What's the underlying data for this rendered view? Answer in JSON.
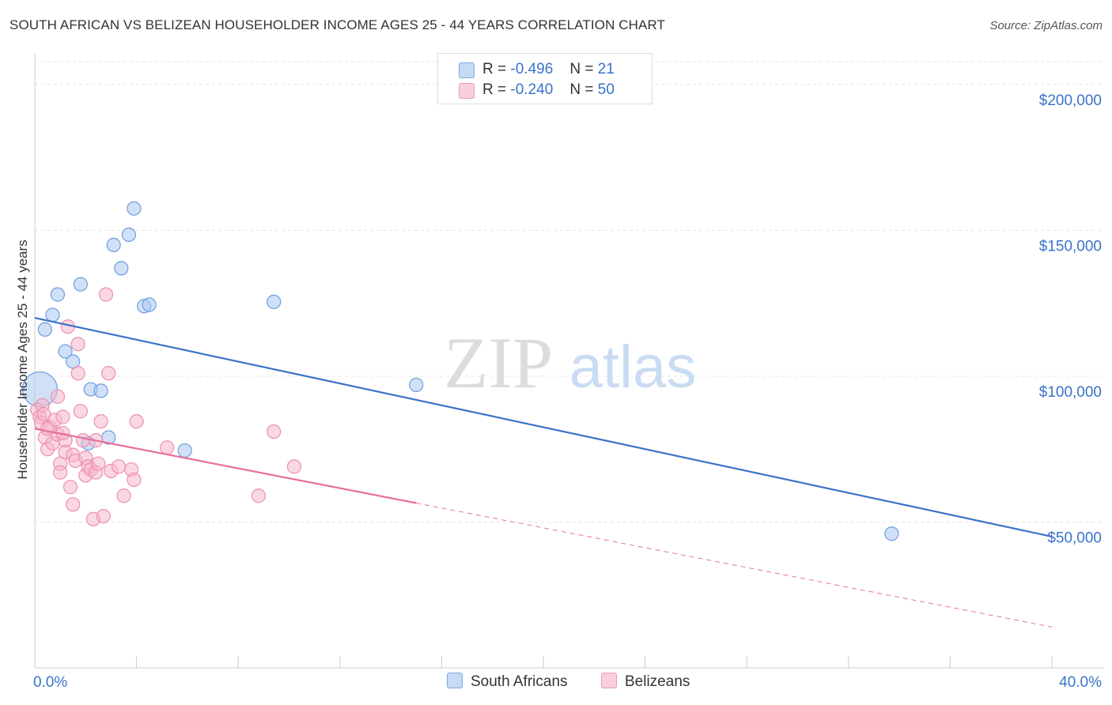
{
  "title": "SOUTH AFRICAN VS BELIZEAN HOUSEHOLDER INCOME AGES 25 - 44 YEARS CORRELATION CHART",
  "source": "Source: ZipAtlas.com",
  "watermark": {
    "zip": "ZIP",
    "atlas": "atlas"
  },
  "legend": {
    "rows": [
      {
        "r_label": "R =",
        "r_value": "-0.496",
        "n_label": "N =",
        "n_value": "21",
        "color": "#aac8f0"
      },
      {
        "r_label": "R =",
        "r_value": "-0.240",
        "n_label": "N =",
        "n_value": "50",
        "color": "#f6b8cc"
      }
    ]
  },
  "bottom_legend": {
    "series1": "South Africans",
    "series2": "Belizeans"
  },
  "colors": {
    "blue": "#3a73c9",
    "blue_fill": "#aac8f0",
    "pink": "#e8709a",
    "pink_fill": "#f6b8cc",
    "grid": "#e4e4e4",
    "axis_text": "#3a73c9"
  },
  "chart_data": {
    "type": "scatter",
    "title": "SOUTH AFRICAN VS BELIZEAN HOUSEHOLDER INCOME AGES 25 - 44 YEARS CORRELATION CHART",
    "xlabel": "",
    "ylabel": "Householder Income Ages 25 - 44 years",
    "xlim": [
      0,
      40
    ],
    "ylim": [
      0,
      210000
    ],
    "x_tick_labels": [
      "0.0%",
      "40.0%"
    ],
    "y_ticks": [
      50000,
      100000,
      150000,
      200000
    ],
    "y_tick_labels": [
      "$50,000",
      "$100,000",
      "$150,000",
      "$200,000"
    ],
    "series": [
      {
        "name": "South Africans",
        "color": "#3a73c9",
        "points": [
          [
            0.2,
            95500
          ],
          [
            0.4,
            116000
          ],
          [
            0.7,
            121000
          ],
          [
            0.9,
            128000
          ],
          [
            1.2,
            108500
          ],
          [
            1.5,
            105000
          ],
          [
            1.8,
            131500
          ],
          [
            2.1,
            77000
          ],
          [
            2.2,
            95500
          ],
          [
            2.6,
            95000
          ],
          [
            2.9,
            79000
          ],
          [
            3.1,
            145000
          ],
          [
            3.4,
            137000
          ],
          [
            3.7,
            148500
          ],
          [
            3.9,
            157500
          ],
          [
            4.3,
            124000
          ],
          [
            4.5,
            124500
          ],
          [
            5.9,
            74500
          ],
          [
            9.4,
            125500
          ],
          [
            15.0,
            97000
          ],
          [
            33.7,
            46000
          ]
        ],
        "trend": {
          "x": [
            0,
            40
          ],
          "y": [
            120000,
            45000
          ]
        }
      },
      {
        "name": "Belizeans",
        "color": "#e8709a",
        "points": [
          [
            0.1,
            88500
          ],
          [
            0.2,
            86000
          ],
          [
            0.25,
            84000
          ],
          [
            0.3,
            90000
          ],
          [
            0.35,
            87000
          ],
          [
            0.4,
            79000
          ],
          [
            0.5,
            75000
          ],
          [
            0.6,
            82500
          ],
          [
            0.7,
            77000
          ],
          [
            0.8,
            85000
          ],
          [
            0.9,
            93000
          ],
          [
            0.9,
            80000
          ],
          [
            1.0,
            70000
          ],
          [
            1.0,
            67000
          ],
          [
            1.1,
            86000
          ],
          [
            1.2,
            78000
          ],
          [
            1.2,
            74000
          ],
          [
            1.3,
            117000
          ],
          [
            1.4,
            62000
          ],
          [
            1.5,
            56000
          ],
          [
            1.5,
            73000
          ],
          [
            1.6,
            71000
          ],
          [
            1.7,
            111000
          ],
          [
            1.7,
            101000
          ],
          [
            1.8,
            88000
          ],
          [
            1.9,
            78000
          ],
          [
            2.0,
            72000
          ],
          [
            2.0,
            66000
          ],
          [
            2.1,
            69000
          ],
          [
            2.2,
            68000
          ],
          [
            2.3,
            51000
          ],
          [
            2.4,
            67000
          ],
          [
            2.5,
            70000
          ],
          [
            2.6,
            84500
          ],
          [
            2.7,
            52000
          ],
          [
            2.8,
            128000
          ],
          [
            2.9,
            101000
          ],
          [
            3.0,
            67500
          ],
          [
            3.3,
            69000
          ],
          [
            3.5,
            59000
          ],
          [
            3.8,
            68000
          ],
          [
            3.9,
            64500
          ],
          [
            4.0,
            84500
          ],
          [
            5.2,
            75500
          ],
          [
            8.8,
            59000
          ],
          [
            9.4,
            81000
          ],
          [
            10.2,
            69000
          ],
          [
            0.5,
            82000
          ],
          [
            1.1,
            80500
          ],
          [
            2.4,
            78000
          ]
        ],
        "trend": {
          "x": [
            0,
            15
          ],
          "y": [
            82000,
            56500
          ]
        },
        "trend_extension": {
          "x": [
            15,
            40
          ],
          "y": [
            56500,
            14000
          ]
        }
      }
    ]
  }
}
